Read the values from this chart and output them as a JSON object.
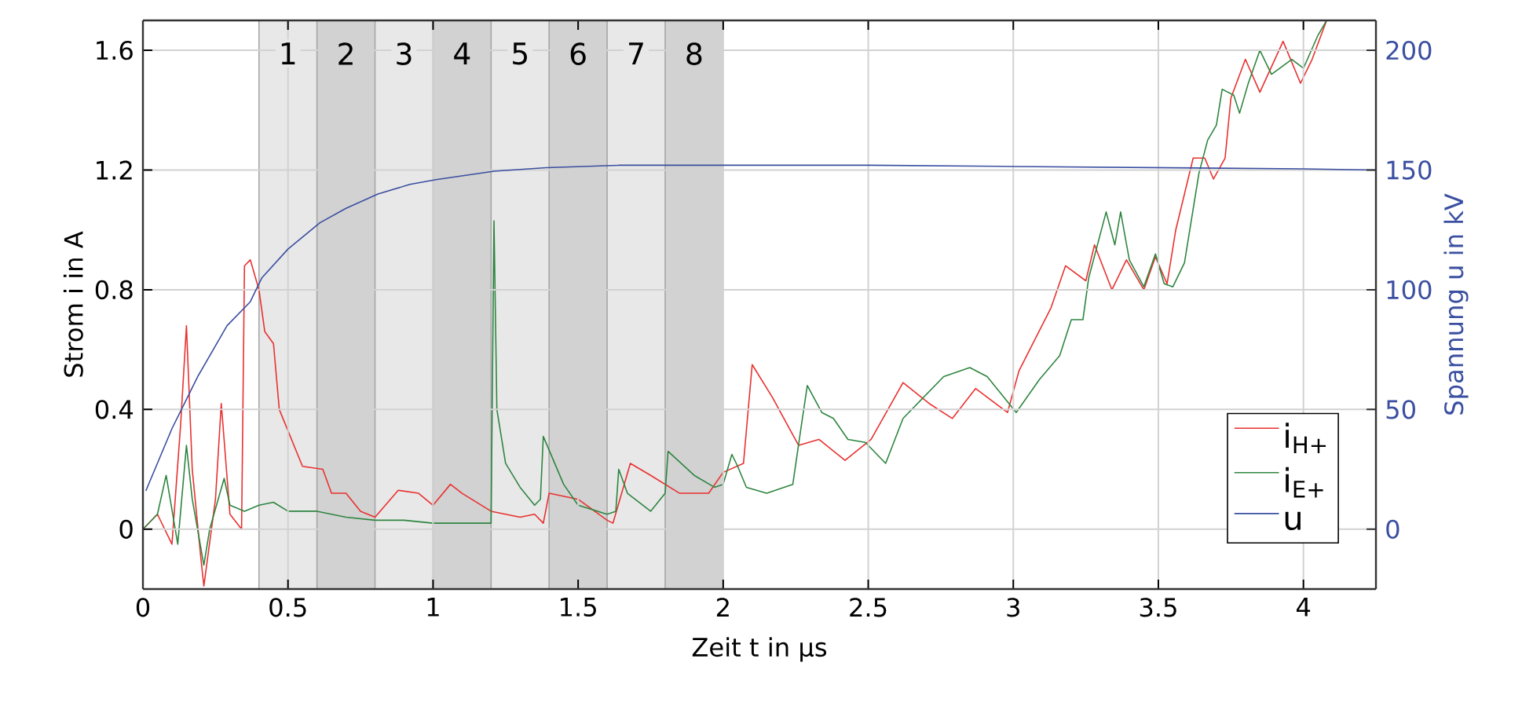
{
  "chart_data": {
    "type": "line",
    "xlabel": "Zeit t in µs",
    "ylabel": "Strom i in A",
    "y2label": "Spannung u in kV",
    "xlim": [
      0,
      4.25
    ],
    "ylim": [
      -0.2,
      1.7
    ],
    "y2lim": [
      -25,
      212.5
    ],
    "xticks": [
      0,
      0.5,
      1,
      1.5,
      2,
      2.5,
      3,
      3.5,
      4
    ],
    "yticks": [
      0,
      0.4,
      0.8,
      1.2,
      1.6
    ],
    "y2ticks": [
      0,
      50,
      100,
      150,
      200
    ],
    "grid": true,
    "legend": "bottom right",
    "bands": [
      {
        "axis": "x",
        "from": 0.4,
        "to": 0.6,
        "label": "1",
        "color": "#e8e8e8"
      },
      {
        "axis": "x",
        "from": 0.6,
        "to": 0.8,
        "label": "2",
        "color": "#d2d2d2"
      },
      {
        "axis": "x",
        "from": 0.8,
        "to": 1.0,
        "label": "3",
        "color": "#e8e8e8"
      },
      {
        "axis": "x",
        "from": 1.0,
        "to": 1.2,
        "label": "4",
        "color": "#d2d2d2"
      },
      {
        "axis": "x",
        "from": 1.2,
        "to": 1.4,
        "label": "5",
        "color": "#e8e8e8"
      },
      {
        "axis": "x",
        "from": 1.4,
        "to": 1.6,
        "label": "6",
        "color": "#d2d2d2"
      },
      {
        "axis": "x",
        "from": 1.6,
        "to": 1.8,
        "label": "7",
        "color": "#e8e8e8"
      },
      {
        "axis": "x",
        "from": 1.8,
        "to": 2.0,
        "label": "8",
        "color": "#d2d2d2"
      }
    ],
    "series": [
      {
        "name": "i$_{H+}$",
        "color": "#e8312f",
        "x": [
          0,
          0.05,
          0.1,
          0.13,
          0.15,
          0.17,
          0.2,
          0.21,
          0.25,
          0.27,
          0.3,
          0.34,
          0.35,
          0.37,
          0.4,
          0.42,
          0.45,
          0.47,
          0.55,
          0.62,
          0.65,
          0.7,
          0.75,
          0.8,
          0.88,
          0.95,
          1.0,
          1.06,
          1.1,
          1.2,
          1.3,
          1.35,
          1.38,
          1.4,
          1.5,
          1.6,
          1.62,
          1.68,
          1.75,
          1.85,
          1.95,
          2.0,
          2.07,
          2.1,
          2.17,
          2.26,
          2.33,
          2.42,
          2.51,
          2.62,
          2.71,
          2.79,
          2.87,
          2.98,
          3.02,
          3.13,
          3.18,
          3.25,
          3.28,
          3.34,
          3.39,
          3.45,
          3.49,
          3.53,
          3.56,
          3.62,
          3.66,
          3.69,
          3.73,
          3.75,
          3.8,
          3.85,
          3.93,
          3.99,
          4.03,
          4.08
        ],
        "values": [
          0.0,
          0.05,
          -0.05,
          0.35,
          0.68,
          0.2,
          -0.1,
          -0.19,
          0.1,
          0.42,
          0.05,
          0.0,
          0.88,
          0.9,
          0.8,
          0.66,
          0.62,
          0.4,
          0.21,
          0.2,
          0.12,
          0.12,
          0.06,
          0.04,
          0.13,
          0.12,
          0.08,
          0.15,
          0.12,
          0.06,
          0.04,
          0.05,
          0.02,
          0.12,
          0.1,
          0.03,
          0.02,
          0.22,
          0.18,
          0.12,
          0.12,
          0.19,
          0.22,
          0.55,
          0.44,
          0.28,
          0.3,
          0.23,
          0.3,
          0.49,
          0.42,
          0.37,
          0.47,
          0.39,
          0.53,
          0.74,
          0.88,
          0.83,
          0.95,
          0.8,
          0.9,
          0.8,
          0.91,
          0.82,
          1.0,
          1.24,
          1.24,
          1.17,
          1.24,
          1.44,
          1.57,
          1.46,
          1.63,
          1.49,
          1.57,
          1.7
        ]
      },
      {
        "name": "i$_{E+}$",
        "color": "#2e8540",
        "x": [
          0,
          0.05,
          0.08,
          0.12,
          0.15,
          0.17,
          0.21,
          0.23,
          0.28,
          0.3,
          0.35,
          0.4,
          0.45,
          0.5,
          0.6,
          0.7,
          0.8,
          0.9,
          1.0,
          1.1,
          1.2,
          1.21,
          1.22,
          1.25,
          1.3,
          1.35,
          1.37,
          1.38,
          1.45,
          1.5,
          1.6,
          1.63,
          1.64,
          1.67,
          1.75,
          1.8,
          1.81,
          1.9,
          1.97,
          2.0,
          2.03,
          2.05,
          2.08,
          2.15,
          2.24,
          2.27,
          2.29,
          2.34,
          2.38,
          2.43,
          2.49,
          2.56,
          2.62,
          2.69,
          2.76,
          2.85,
          2.91,
          3.01,
          3.09,
          3.16,
          3.2,
          3.24,
          3.26,
          3.32,
          3.35,
          3.37,
          3.4,
          3.45,
          3.49,
          3.52,
          3.55,
          3.59,
          3.64,
          3.67,
          3.7,
          3.72,
          3.76,
          3.78,
          3.81,
          3.85,
          3.89,
          3.96,
          4.0,
          4.05,
          4.08
        ],
        "values": [
          0.0,
          0.05,
          0.18,
          -0.05,
          0.28,
          0.1,
          -0.12,
          0.0,
          0.17,
          0.08,
          0.06,
          0.08,
          0.09,
          0.06,
          0.06,
          0.04,
          0.03,
          0.03,
          0.02,
          0.02,
          0.02,
          1.03,
          0.4,
          0.22,
          0.14,
          0.08,
          0.1,
          0.31,
          0.15,
          0.08,
          0.05,
          0.06,
          0.2,
          0.12,
          0.06,
          0.12,
          0.26,
          0.18,
          0.14,
          0.15,
          0.25,
          0.21,
          0.14,
          0.12,
          0.15,
          0.35,
          0.48,
          0.39,
          0.37,
          0.3,
          0.29,
          0.22,
          0.37,
          0.44,
          0.51,
          0.54,
          0.51,
          0.39,
          0.5,
          0.58,
          0.7,
          0.7,
          0.84,
          1.06,
          0.95,
          1.06,
          0.9,
          0.81,
          0.92,
          0.82,
          0.81,
          0.89,
          1.19,
          1.3,
          1.35,
          1.47,
          1.45,
          1.39,
          1.49,
          1.6,
          1.52,
          1.57,
          1.54,
          1.65,
          1.7
        ]
      },
      {
        "name": "u",
        "color": "#3a4fa0",
        "axis": "y2",
        "x": [
          0.01,
          0.1,
          0.19,
          0.29,
          0.37,
          0.41,
          0.5,
          0.61,
          0.7,
          0.81,
          0.92,
          1.01,
          1.21,
          1.39,
          1.64,
          2.0,
          2.5,
          3.0,
          3.5,
          4.0,
          4.25
        ],
        "values": [
          16,
          42,
          64,
          85,
          95,
          105,
          117,
          128,
          134,
          140,
          144,
          146,
          149.5,
          151,
          152,
          152,
          152,
          151.5,
          151,
          150.5,
          150
        ]
      }
    ]
  }
}
